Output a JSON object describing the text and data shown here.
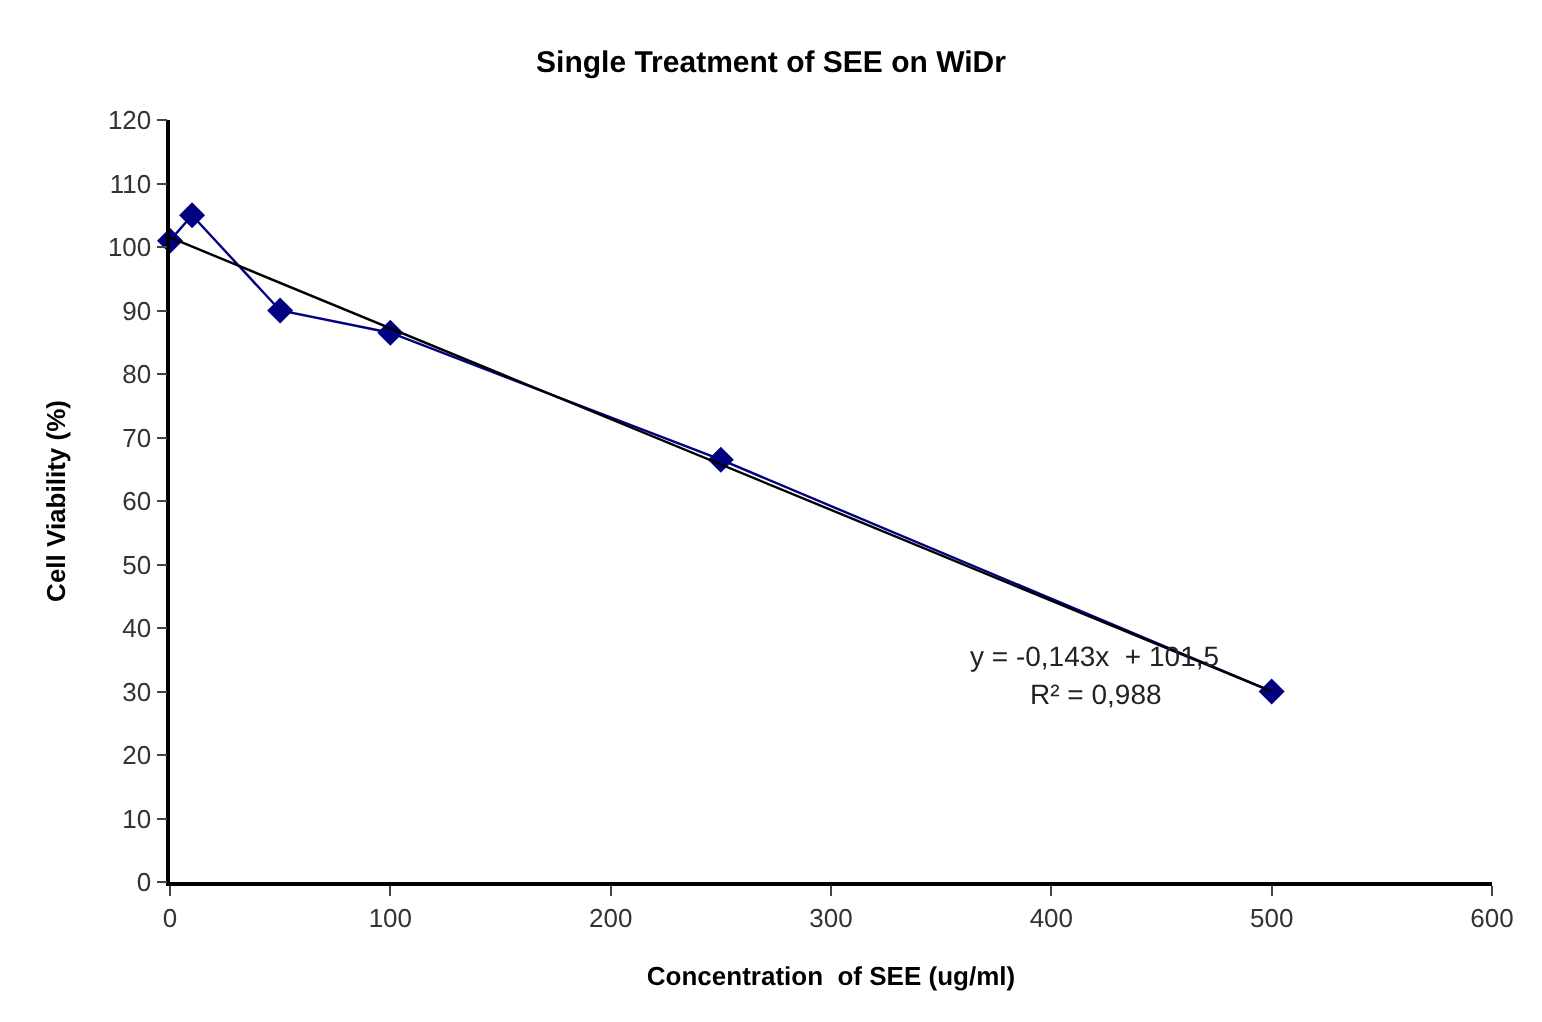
{
  "chart_data": {
    "type": "line",
    "title": "Single Treatment of SEE on WiDr",
    "xlabel": "Concentration  of SEE (ug/ml)",
    "ylabel": "Cell Viability (%)",
    "x": [
      0,
      10,
      50,
      100,
      250,
      500
    ],
    "series": [
      {
        "color": "#000080",
        "values": [
          101,
          105,
          90,
          86.5,
          66.5,
          30
        ],
        "marker": "diamond"
      },
      {
        "color": "#000000",
        "x": [
          0,
          500
        ],
        "values": [
          101.5,
          30
        ],
        "marker": "none"
      }
    ],
    "xlim": [
      0,
      600
    ],
    "xticks": [
      0,
      100,
      200,
      300,
      400,
      500,
      600
    ],
    "ylim": [
      0,
      120
    ],
    "yticks": [
      0,
      10,
      20,
      30,
      40,
      50,
      60,
      70,
      80,
      90,
      100,
      110,
      120
    ],
    "grid": false,
    "annotations": [
      "y = -0,143x  + 101,5",
      "R² = 0,988"
    ]
  }
}
